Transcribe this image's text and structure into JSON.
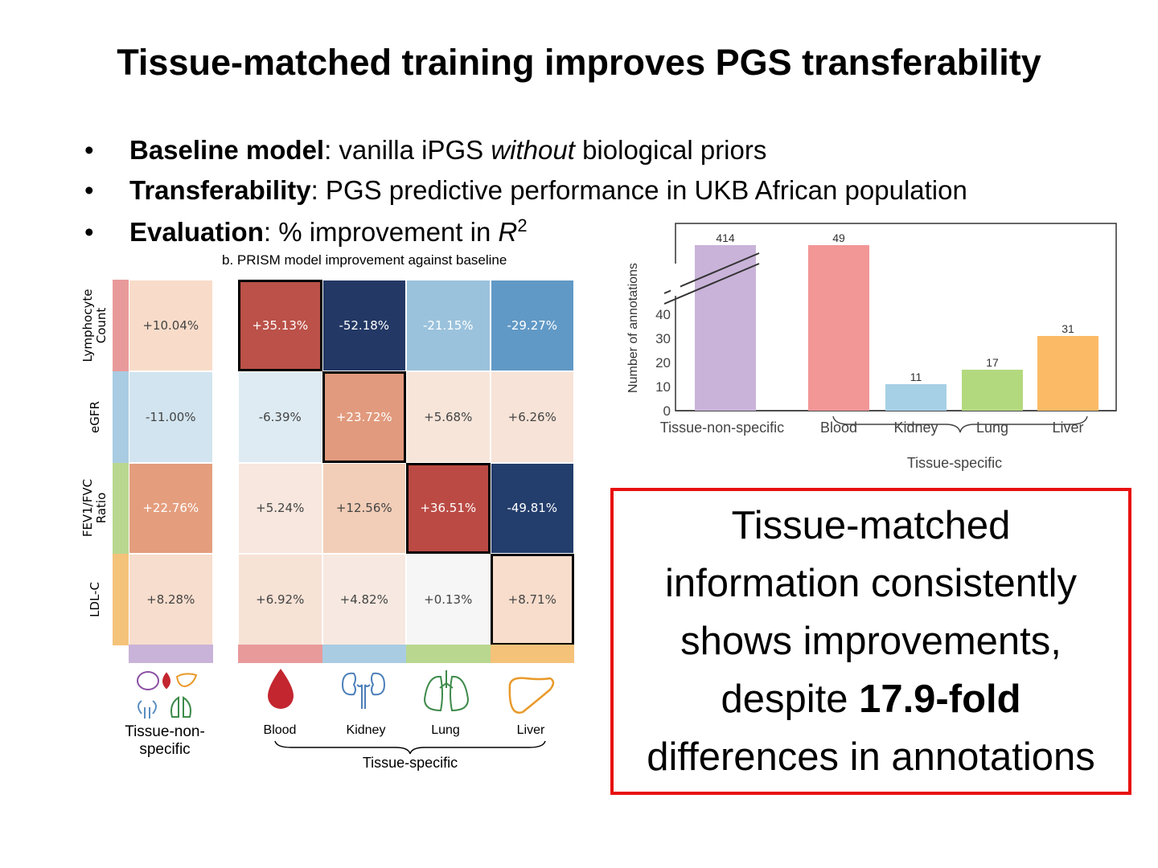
{
  "title": "Tissue-matched training improves PGS transferability",
  "bullets": [
    {
      "bold": "Baseline model",
      "rest_a": ": vanilla iPGS ",
      "italic": "without",
      "rest_b": " biological priors"
    },
    {
      "bold": "Transferability",
      "rest_a": ": PGS predictive performance in UKB African population",
      "italic": "",
      "rest_b": ""
    },
    {
      "bold": "Evaluation",
      "rest_a": ": % improvement in ",
      "italic": "R",
      "sup": "2",
      "rest_b": ""
    }
  ],
  "bullet_glyph": "•",
  "chart_data": [
    {
      "type": "heatmap",
      "title": "b.  PRISM model improvement against baseline",
      "rows": [
        "Lymphocyte Count",
        "eGFR",
        "FEV1/FVC Ratio",
        "LDL-C"
      ],
      "row_label_lines": [
        [
          "Lymphocyte",
          "Count"
        ],
        [
          "eGFR"
        ],
        [
          "FEV1/FVC",
          "Ratio"
        ],
        [
          "LDL-C"
        ]
      ],
      "row_colors": [
        "#e89a9a",
        "#a9cce3",
        "#b9d78f",
        "#f5c27a"
      ],
      "columns": [
        "Tissue-non-specific",
        "Blood",
        "Kidney",
        "Lung",
        "Liver"
      ],
      "column_colors": [
        "#c9b3d9",
        "#e89a9a",
        "#a9cce3",
        "#b9d78f",
        "#f5c27a"
      ],
      "group_label": "Tissue-specific",
      "values": [
        [
          10.04,
          35.13,
          -52.18,
          -21.15,
          -29.27
        ],
        [
          -11.0,
          -6.39,
          23.72,
          5.68,
          6.26
        ],
        [
          22.76,
          5.24,
          12.56,
          36.51,
          -49.81
        ],
        [
          8.28,
          6.92,
          4.82,
          0.13,
          8.71
        ]
      ],
      "labels": [
        [
          "+10.04%",
          "+35.13%",
          "-52.18%",
          "-21.15%",
          "-29.27%"
        ],
        [
          "-11.00%",
          "-6.39%",
          "+23.72%",
          "+5.68%",
          "+6.26%"
        ],
        [
          "+22.76%",
          "+5.24%",
          "+12.56%",
          "+36.51%",
          "-49.81%"
        ],
        [
          "+8.28%",
          "+6.92%",
          "+4.82%",
          "+0.13%",
          "+8.71%"
        ]
      ],
      "cell_colors": [
        [
          "#f8dcc9",
          "#bb5148",
          "#233865",
          "#9bc2dc",
          "#6199c6"
        ],
        [
          "#d2e4ef",
          "#deebf3",
          "#e19a7d",
          "#f7e5da",
          "#f7e3d7"
        ],
        [
          "#e49e7e",
          "#f7e7de",
          "#f2cdb7",
          "#bb4a44",
          "#233d6c"
        ],
        [
          "#f7ddcd",
          "#f7e2d6",
          "#f7e9e1",
          "#f6f6f6",
          "#f8ddcc"
        ]
      ],
      "highlighted": [
        [
          0,
          1
        ],
        [
          1,
          2
        ],
        [
          2,
          3
        ],
        [
          3,
          4
        ]
      ],
      "colormap": "diverging red-blue"
    },
    {
      "type": "bar",
      "ylabel": "Number of annotations",
      "xlabel": "",
      "categories": [
        "Tissue-non-specific",
        "Blood",
        "Kidney",
        "Lung",
        "Liver"
      ],
      "values": [
        414,
        49,
        11,
        17,
        31
      ],
      "colors": [
        "#c9b3d9",
        "#f29696",
        "#a6d0e6",
        "#b3d97f",
        "#fbbb66"
      ],
      "yticks": [
        0,
        10,
        20,
        30,
        40
      ],
      "ylim": [
        0,
        45
      ],
      "axis_break": true,
      "group_label": "Tissue-specific"
    }
  ],
  "callout": {
    "line1": "Tissue-matched",
    "line2": "information consistently",
    "line3": "shows improvements,",
    "line4_a": "despite ",
    "line4_bold": "17.9-fold",
    "line5": "differences in annotations",
    "border_color": "#e81010"
  }
}
